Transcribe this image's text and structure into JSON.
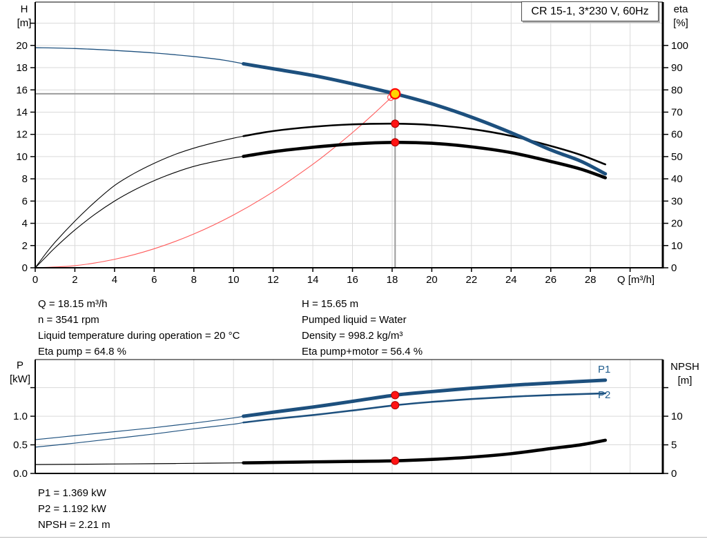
{
  "title_box": "CR 15-1, 3*230 V, 60Hz",
  "colors": {
    "curve_blue": "#1d507e",
    "curve_black": "#000000",
    "system_red": "#ff5a5a",
    "marker_red": "#ff1414",
    "marker_red_stroke": "#a50000",
    "duty_yellow": "#ffd500",
    "crosshair": "#9a9a9a",
    "grid": "#d9d9d9",
    "axis": "#000000",
    "label_blue": "#1f5c8d"
  },
  "annotations": {
    "left": [
      "Q = 18.15 m³/h",
      "n = 3541 rpm",
      "Liquid temperature during operation = 20 °C",
      "Eta pump = 64.8 %"
    ],
    "right": [
      "H = 15.65 m",
      "Pumped liquid = Water",
      "Density = 998.2 kg/m³",
      "Eta pump+motor = 56.4 %"
    ],
    "bottom": [
      "P1 = 1.369 kW",
      "P2 = 1.192 kW",
      "NPSH = 2.21 m"
    ]
  },
  "chart_data": [
    {
      "type": "line",
      "name": "head-efficiency-chart",
      "title": "CR 15-1, 3*230 V, 60Hz",
      "x_axis": {
        "label": "Q [m³/h]",
        "range": [
          0,
          31.65
        ],
        "ticks": [
          0,
          2,
          4,
          6,
          8,
          10,
          12,
          14,
          16,
          18,
          20,
          22,
          24,
          26,
          28,
          30
        ],
        "tick_labels": [
          "0",
          "2",
          "4",
          "6",
          "8",
          "10",
          "12",
          "14",
          "16",
          "18",
          "20",
          "22",
          "24",
          "26",
          "28",
          ""
        ]
      },
      "y_left": {
        "label": "H [m]",
        "label_lines": [
          "H",
          "[m]"
        ],
        "range": [
          0,
          23.9
        ],
        "ticks": [
          0,
          2,
          4,
          6,
          8,
          10,
          12,
          14,
          16,
          18,
          20,
          22
        ],
        "tick_labels": [
          "0",
          "2",
          "4",
          "6",
          "8",
          "10",
          "12",
          "14",
          "16",
          "18",
          "20",
          ""
        ]
      },
      "y_right": {
        "label": "eta [%]",
        "label_lines": [
          "eta",
          "[%]"
        ],
        "range": [
          0,
          119.5
        ],
        "ticks": [
          0,
          10,
          20,
          30,
          40,
          50,
          60,
          70,
          80,
          90,
          100
        ],
        "tick_labels": [
          "0",
          "10",
          "20",
          "30",
          "40",
          "50",
          "60",
          "70",
          "80",
          "90",
          "100"
        ]
      },
      "duty_point": {
        "q": 18.15,
        "h": 15.65
      },
      "helper_point": {
        "q": 17.93,
        "h": 15.33
      },
      "series": [
        {
          "name": "system-curve",
          "axis": "left",
          "color_key": "system_red",
          "segments": [
            {
              "width": 1.1,
              "points": [
                [
                  0,
                  0
                ],
                [
                  2,
                  0.19
                ],
                [
                  4,
                  0.76
                ],
                [
                  6,
                  1.71
                ],
                [
                  8,
                  3.04
                ],
                [
                  10,
                  4.75
                ],
                [
                  12,
                  6.84
                ],
                [
                  14,
                  9.31
                ],
                [
                  15,
                  10.69
                ],
                [
                  16,
                  12.16
                ],
                [
                  17,
                  13.73
                ],
                [
                  18.15,
                  15.65
                ]
              ]
            }
          ]
        },
        {
          "name": "eta-pump-curve",
          "axis": "right",
          "color_key": "curve_black",
          "segments": [
            {
              "width": 1.1,
              "points": [
                [
                  0,
                  0
                ],
                [
                  0.5,
                  6
                ],
                [
                  1,
                  11.5
                ],
                [
                  2,
                  21
                ],
                [
                  3,
                  29.5
                ],
                [
                  4,
                  37
                ],
                [
                  5,
                  42.5
                ],
                [
                  6,
                  47
                ],
                [
                  7,
                  50.8
                ],
                [
                  8,
                  53.8
                ],
                [
                  9,
                  56.2
                ],
                [
                  10,
                  58.3
                ],
                [
                  10.5,
                  59.2
                ]
              ]
            },
            {
              "width": 2.6,
              "points": [
                [
                  10.5,
                  59.2
                ],
                [
                  12,
                  61.5
                ],
                [
                  14,
                  63.4
                ],
                [
                  16,
                  64.5
                ],
                [
                  18.15,
                  64.8
                ],
                [
                  20,
                  64.2
                ],
                [
                  22,
                  62.4
                ],
                [
                  24,
                  59.3
                ],
                [
                  26,
                  54.8
                ],
                [
                  27.5,
                  50.8
                ],
                [
                  28.75,
                  46.5
                ]
              ]
            }
          ]
        },
        {
          "name": "eta-pump-motor-curve",
          "axis": "right",
          "color_key": "curve_black",
          "segments": [
            {
              "width": 1.1,
              "points": [
                [
                  0,
                  0
                ],
                [
                  0.5,
                  4.5
                ],
                [
                  1,
                  9
                ],
                [
                  2,
                  17
                ],
                [
                  3,
                  24
                ],
                [
                  4,
                  30
                ],
                [
                  5,
                  35
                ],
                [
                  6,
                  39.2
                ],
                [
                  7,
                  42.7
                ],
                [
                  8,
                  45.6
                ],
                [
                  9,
                  47.7
                ],
                [
                  10,
                  49.4
                ],
                [
                  10.5,
                  50.1
                ]
              ]
            },
            {
              "width": 4.6,
              "points": [
                [
                  10.5,
                  50.1
                ],
                [
                  12,
                  52.2
                ],
                [
                  14,
                  54.2
                ],
                [
                  16,
                  55.7
                ],
                [
                  18.15,
                  56.4
                ],
                [
                  20,
                  56.0
                ],
                [
                  22,
                  54.4
                ],
                [
                  24,
                  51.8
                ],
                [
                  26,
                  47.8
                ],
                [
                  27.5,
                  44.4
                ],
                [
                  28.75,
                  40.5
                ]
              ]
            }
          ]
        },
        {
          "name": "head-curve",
          "axis": "left",
          "color_key": "curve_blue",
          "segments": [
            {
              "width": 1.3,
              "points": [
                [
                  0,
                  19.8
                ],
                [
                  2,
                  19.72
                ],
                [
                  4,
                  19.55
                ],
                [
                  6,
                  19.32
                ],
                [
                  8,
                  19.0
                ],
                [
                  9.5,
                  18.68
                ],
                [
                  10.5,
                  18.35
                ]
              ]
            },
            {
              "width": 5,
              "points": [
                [
                  10.5,
                  18.35
                ],
                [
                  12,
                  17.9
                ],
                [
                  14,
                  17.3
                ],
                [
                  16,
                  16.55
                ],
                [
                  18.15,
                  15.65
                ],
                [
                  20,
                  14.75
                ],
                [
                  22,
                  13.55
                ],
                [
                  24,
                  12.15
                ],
                [
                  26,
                  10.6
                ],
                [
                  27.5,
                  9.6
                ],
                [
                  28.75,
                  8.45
                ]
              ]
            }
          ]
        }
      ],
      "markers": [
        {
          "name": "eta-pump-duty-dot",
          "q": 18.15,
          "value": 64.8,
          "axis": "right"
        },
        {
          "name": "eta-pump-motor-duty-dot",
          "q": 18.15,
          "value": 56.4,
          "axis": "right"
        }
      ]
    },
    {
      "type": "line",
      "name": "power-npsh-chart",
      "x_axis": {
        "label": "",
        "range": [
          0,
          31.65
        ],
        "ticks": [
          2,
          4,
          6,
          8,
          10,
          12,
          14,
          16,
          18,
          20,
          22,
          24,
          26,
          28,
          30
        ],
        "tick_labels": []
      },
      "y_left": {
        "label": "P [kW]",
        "label_lines": [
          "P",
          "[kW]"
        ],
        "range": [
          0,
          1.99
        ],
        "ticks": [
          0,
          0.5,
          1.0,
          1.5
        ],
        "tick_labels": [
          "0.0",
          "0.5",
          "1.0",
          ""
        ]
      },
      "y_right": {
        "label": "NPSH [m]",
        "label_lines": [
          "NPSH",
          "[m]"
        ],
        "range": [
          0,
          19.9
        ],
        "ticks": [
          0,
          5,
          10,
          15
        ],
        "tick_labels": [
          "0",
          "5",
          "10",
          ""
        ]
      },
      "series_labels": {
        "p1": "P1",
        "p2": "P2"
      },
      "series": [
        {
          "name": "p1-curve",
          "axis": "left",
          "color_key": "curve_blue",
          "segments": [
            {
              "width": 1.2,
              "points": [
                [
                  0,
                  0.59
                ],
                [
                  2,
                  0.66
                ],
                [
                  4,
                  0.73
                ],
                [
                  6,
                  0.8
                ],
                [
                  8,
                  0.88
                ],
                [
                  10,
                  0.97
                ],
                [
                  10.5,
                  1.0
                ]
              ]
            },
            {
              "width": 5,
              "points": [
                [
                  10.5,
                  1.0
                ],
                [
                  12,
                  1.07
                ],
                [
                  14,
                  1.16
                ],
                [
                  16,
                  1.26
                ],
                [
                  18.15,
                  1.369
                ],
                [
                  20,
                  1.43
                ],
                [
                  22,
                  1.49
                ],
                [
                  24,
                  1.54
                ],
                [
                  26,
                  1.58
                ],
                [
                  28.75,
                  1.63
                ]
              ]
            }
          ]
        },
        {
          "name": "p2-curve",
          "axis": "left",
          "color_key": "curve_blue",
          "segments": [
            {
              "width": 1.2,
              "points": [
                [
                  0,
                  0.46
                ],
                [
                  2,
                  0.53
                ],
                [
                  4,
                  0.61
                ],
                [
                  6,
                  0.69
                ],
                [
                  8,
                  0.78
                ],
                [
                  10,
                  0.86
                ],
                [
                  10.5,
                  0.89
                ]
              ]
            },
            {
              "width": 2.6,
              "points": [
                [
                  10.5,
                  0.89
                ],
                [
                  12,
                  0.95
                ],
                [
                  14,
                  1.02
                ],
                [
                  16,
                  1.1
                ],
                [
                  18.15,
                  1.192
                ],
                [
                  20,
                  1.25
                ],
                [
                  22,
                  1.3
                ],
                [
                  24,
                  1.34
                ],
                [
                  26,
                  1.37
                ],
                [
                  28.75,
                  1.4
                ]
              ]
            }
          ]
        },
        {
          "name": "npsh-curve",
          "axis": "right",
          "color_key": "curve_black",
          "segments": [
            {
              "width": 1.2,
              "points": [
                [
                  0,
                  1.55
                ],
                [
                  2,
                  1.6
                ],
                [
                  4,
                  1.65
                ],
                [
                  6,
                  1.7
                ],
                [
                  8,
                  1.77
                ],
                [
                  10,
                  1.83
                ],
                [
                  10.5,
                  1.85
                ]
              ]
            },
            {
              "width": 4.6,
              "points": [
                [
                  10.5,
                  1.85
                ],
                [
                  12,
                  1.92
                ],
                [
                  14,
                  2.02
                ],
                [
                  16,
                  2.1
                ],
                [
                  18.15,
                  2.21
                ],
                [
                  20,
                  2.45
                ],
                [
                  22,
                  2.85
                ],
                [
                  24,
                  3.45
                ],
                [
                  26,
                  4.35
                ],
                [
                  27.5,
                  5.0
                ],
                [
                  28.75,
                  5.8
                ]
              ]
            }
          ]
        }
      ],
      "markers": [
        {
          "name": "p1-duty-dot",
          "q": 18.15,
          "value": 1.369,
          "axis": "left"
        },
        {
          "name": "p2-duty-dot",
          "q": 18.15,
          "value": 1.192,
          "axis": "left"
        },
        {
          "name": "npsh-duty-dot",
          "q": 18.15,
          "value": 2.21,
          "axis": "right"
        }
      ]
    }
  ]
}
